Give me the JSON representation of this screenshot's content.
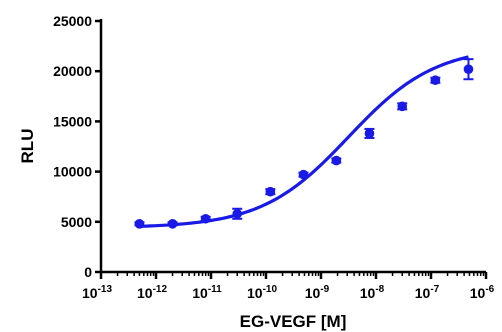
{
  "chart_data": {
    "type": "scatter",
    "xlabel": "EG-VEGF [M]",
    "ylabel": "RLU",
    "x_scale": "log",
    "xlim": [
      1e-13,
      1e-06
    ],
    "ylim": [
      0,
      25000
    ],
    "y_ticks": [
      "0",
      "5000",
      "10000",
      "15000",
      "20000",
      "25000"
    ],
    "x_ticks": [
      {
        "base": "10",
        "exp": "-13",
        "value": 1e-13
      },
      {
        "base": "10",
        "exp": "-12",
        "value": 1e-12
      },
      {
        "base": "10",
        "exp": "-11",
        "value": 1e-11
      },
      {
        "base": "10",
        "exp": "-10",
        "value": 1e-10
      },
      {
        "base": "10",
        "exp": "-9",
        "value": 1e-09
      },
      {
        "base": "10",
        "exp": "-8",
        "value": 1e-08
      },
      {
        "base": "10",
        "exp": "-7",
        "value": 1e-07
      },
      {
        "base": "10",
        "exp": "-6",
        "value": 1e-06
      }
    ],
    "grid": false,
    "color": "#1a1ae6",
    "points": [
      {
        "x": 5e-13,
        "y": 4800,
        "err": 150
      },
      {
        "x": 2e-12,
        "y": 4800,
        "err": 150
      },
      {
        "x": 8e-12,
        "y": 5300,
        "err": 200
      },
      {
        "x": 3e-11,
        "y": 5800,
        "err": 500
      },
      {
        "x": 1.2e-10,
        "y": 8000,
        "err": 250
      },
      {
        "x": 4.8e-10,
        "y": 9700,
        "err": 200
      },
      {
        "x": 1.9e-09,
        "y": 11100,
        "err": 200
      },
      {
        "x": 7.6e-09,
        "y": 13800,
        "err": 450
      },
      {
        "x": 3e-08,
        "y": 16500,
        "err": 300
      },
      {
        "x": 1.2e-07,
        "y": 19100,
        "err": 250
      },
      {
        "x": 4.8e-07,
        "y": 20200,
        "err": 1000
      }
    ],
    "fit": {
      "bottom": 4400,
      "top": 22500,
      "log_ec50": -8.5,
      "hill": 0.55
    }
  }
}
